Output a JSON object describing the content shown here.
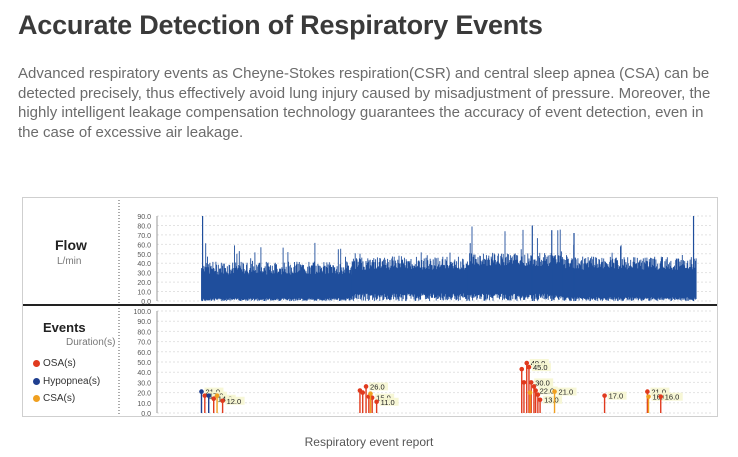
{
  "page": {
    "title": "Accurate Detection of Respiratory Events",
    "description": "Advanced respiratory events as Cheyne-Stokes respiration(CSR) and central sleep apnea (CSA) can be detected precisely, thus effectively avoid lung injury caused by misadjustment of pressure. Moreover, the highly intelligent leakage compensation technology guarantees the accuracy of event detection, even in the case of excessive air leakage.",
    "caption": "Respiratory event report"
  },
  "colors": {
    "flow": "#1f4e9c",
    "osa": "#e03a1e",
    "hypopnea": "#1f3f8f",
    "csa": "#f0a020"
  },
  "flow_panel": {
    "label": "Flow",
    "unit": "L/min"
  },
  "events_panel": {
    "label": "Events",
    "unit": "Duration(s)",
    "legend": [
      {
        "name": "OSA(s)",
        "color": "#e03a1e"
      },
      {
        "name": "Hypopnea(s)",
        "color": "#1f3f8f"
      },
      {
        "name": "CSA(s)",
        "color": "#f0a020"
      }
    ]
  },
  "chart_data": [
    {
      "type": "area",
      "title": "Flow",
      "ylabel": "L/min",
      "ylim": [
        0,
        90
      ],
      "yticks": [
        "0.0",
        "10.0",
        "20.0",
        "30.0",
        "40.0",
        "50.0",
        "60.0",
        "70.0",
        "80.0",
        "90.0"
      ],
      "grid": true,
      "x_range": [
        0,
        100
      ],
      "active_range": [
        8,
        97
      ],
      "series": [
        {
          "segment": [
            8,
            35
          ],
          "base_low": 3,
          "base_high": 35,
          "peak": 62
        },
        {
          "segment": [
            35,
            56
          ],
          "base_low": 8,
          "base_high": 40,
          "peak": 52
        },
        {
          "segment": [
            56,
            73
          ],
          "base_low": 8,
          "base_high": 44,
          "peak": 80
        },
        {
          "segment": [
            73,
            97
          ],
          "base_low": 4,
          "base_high": 40,
          "peak": 60
        }
      ],
      "spikes": [
        {
          "x": 8.2,
          "value": 90
        },
        {
          "x": 67.5,
          "value": 80
        },
        {
          "x": 71,
          "value": 75
        },
        {
          "x": 75,
          "value": 72
        },
        {
          "x": 96.5,
          "value": 90
        }
      ]
    },
    {
      "type": "scatter",
      "title": "Events",
      "ylabel": "Duration(s)",
      "ylim": [
        0,
        100
      ],
      "yticks": [
        "0.0",
        "10.0",
        "20.0",
        "30.0",
        "40.0",
        "50.0",
        "60.0",
        "70.0",
        "80.0",
        "90.0",
        "100.0"
      ],
      "grid": true,
      "x_range": [
        0,
        100
      ],
      "points": [
        {
          "x": 8.0,
          "value": 21.0,
          "kind": "hypopnea",
          "label": "21.0"
        },
        {
          "x": 8.6,
          "value": 17.0,
          "kind": "osa",
          "label": "17.0"
        },
        {
          "x": 9.3,
          "value": 17.0,
          "kind": "hypopnea",
          "label": ""
        },
        {
          "x": 10.2,
          "value": 14.0,
          "kind": "osa",
          "label": "14.0"
        },
        {
          "x": 10.8,
          "value": 17.0,
          "kind": "csa",
          "label": ""
        },
        {
          "x": 11.8,
          "value": 12.0,
          "kind": "osa",
          "label": "12.0"
        },
        {
          "x": 36.5,
          "value": 22.0,
          "kind": "osa",
          "label": ""
        },
        {
          "x": 37.0,
          "value": 20.0,
          "kind": "osa",
          "label": ""
        },
        {
          "x": 37.6,
          "value": 26.0,
          "kind": "osa",
          "label": "26.0"
        },
        {
          "x": 38.1,
          "value": 16.0,
          "kind": "osa",
          "label": ""
        },
        {
          "x": 38.7,
          "value": 15.0,
          "kind": "osa",
          "label": "15.0"
        },
        {
          "x": 39.5,
          "value": 11.0,
          "kind": "osa",
          "label": "11.0"
        },
        {
          "x": 38.4,
          "value": 19.0,
          "kind": "csa",
          "label": ""
        },
        {
          "x": 65.6,
          "value": 43.0,
          "kind": "osa",
          "label": ""
        },
        {
          "x": 66.0,
          "value": 30.0,
          "kind": "osa",
          "label": ""
        },
        {
          "x": 66.5,
          "value": 49.0,
          "kind": "osa",
          "label": "49.0"
        },
        {
          "x": 66.9,
          "value": 45.0,
          "kind": "osa",
          "label": "45.0"
        },
        {
          "x": 67.3,
          "value": 30.0,
          "kind": "osa",
          "label": "30.0"
        },
        {
          "x": 67.8,
          "value": 26.0,
          "kind": "osa",
          "label": ""
        },
        {
          "x": 68.1,
          "value": 22.0,
          "kind": "osa",
          "label": "22.0"
        },
        {
          "x": 68.5,
          "value": 18.0,
          "kind": "osa",
          "label": ""
        },
        {
          "x": 68.9,
          "value": 13.0,
          "kind": "osa",
          "label": "13.0"
        },
        {
          "x": 67.1,
          "value": 20.0,
          "kind": "csa",
          "label": ""
        },
        {
          "x": 71.5,
          "value": 21.0,
          "kind": "csa",
          "label": "21.0"
        },
        {
          "x": 80.5,
          "value": 17.0,
          "kind": "osa",
          "label": "17.0"
        },
        {
          "x": 88.2,
          "value": 21.0,
          "kind": "osa",
          "label": "21.0"
        },
        {
          "x": 88.4,
          "value": 16.0,
          "kind": "csa",
          "label": "16.0"
        },
        {
          "x": 90.6,
          "value": 16.0,
          "kind": "osa",
          "label": "16.0"
        }
      ]
    }
  ]
}
